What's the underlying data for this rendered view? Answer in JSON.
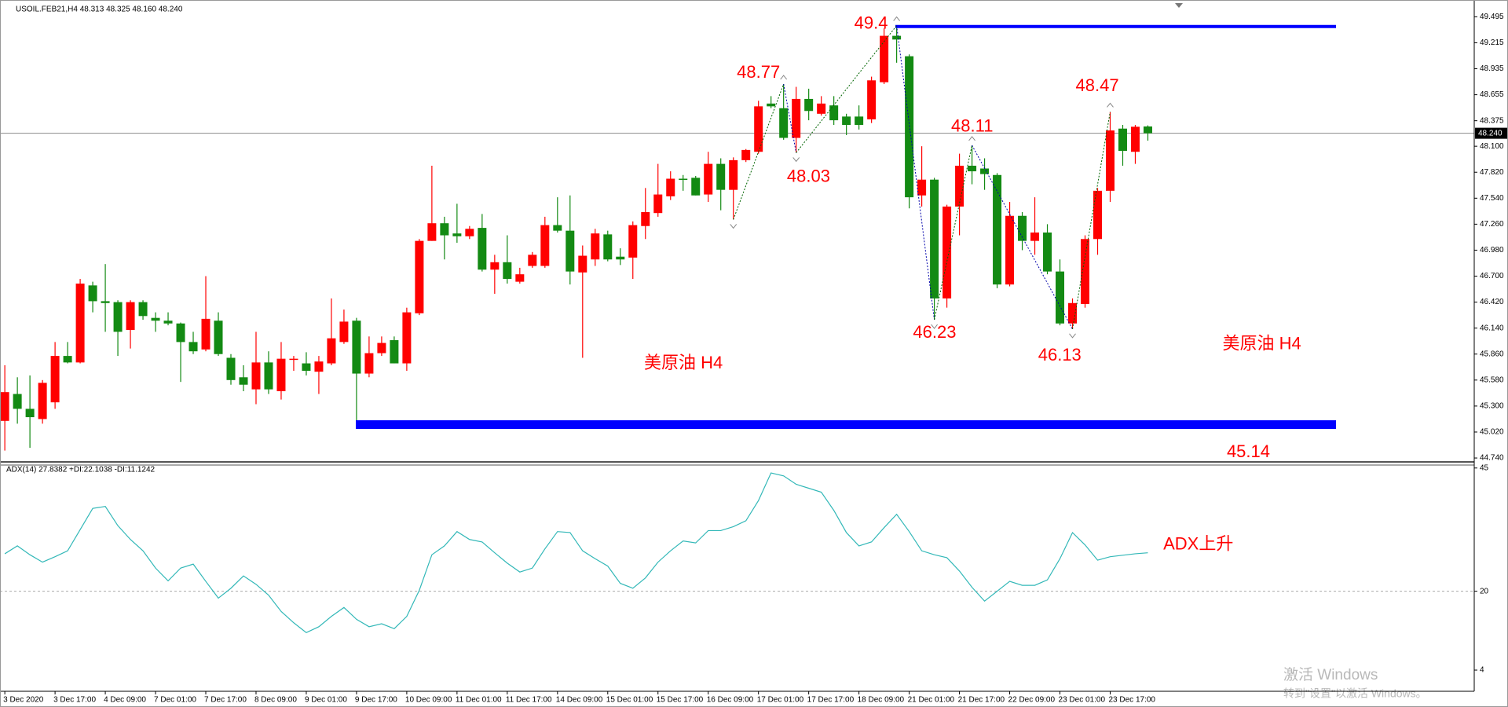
{
  "chart_data": [
    {
      "type": "candlestick",
      "title": "USOIL.FEB21,H4  48.313 48.325 48.160 48.240",
      "categories": [
        "3 Dec 2020",
        null,
        null,
        null,
        "3 Dec 17:00",
        null,
        null,
        null,
        "4 Dec 09:00",
        null,
        null,
        null,
        "7 Dec 01:00",
        null,
        null,
        null,
        "7 Dec 17:00",
        null,
        null,
        null,
        "8 Dec 09:00",
        null,
        null,
        null,
        "9 Dec 01:00",
        null,
        null,
        null,
        "9 Dec 17:00",
        null,
        null,
        null,
        "10 Dec 09:00",
        null,
        null,
        null,
        "11 Dec 01:00",
        null,
        null,
        null,
        "11 Dec 17:00",
        null,
        null,
        null,
        "14 Dec 09:00",
        null,
        null,
        null,
        "15 Dec 01:00",
        null,
        null,
        null,
        "15 Dec 17:00",
        null,
        null,
        null,
        "16 Dec 09:00",
        null,
        null,
        null,
        "17 Dec 01:00",
        null,
        null,
        null,
        "17 Dec 17:00",
        null,
        null,
        null,
        "18 Dec 09:00",
        null,
        null,
        null,
        "21 Dec 01:00",
        null,
        null,
        null,
        "21 Dec 17:00",
        null,
        null,
        null,
        "22 Dec 09:00",
        null,
        null,
        null,
        "23 Dec 01:00",
        null,
        null,
        null,
        "23 Dec 17:00",
        null,
        null,
        null
      ],
      "open": [
        45.14,
        45.43,
        45.27,
        45.16,
        45.34,
        45.84,
        45.77,
        46.6,
        46.43,
        46.42,
        46.12,
        46.42,
        46.25,
        46.22,
        46.19,
        45.99,
        45.91,
        46.22,
        45.82,
        45.61,
        45.48,
        45.77,
        45.46,
        45.8,
        45.76,
        45.67,
        45.76,
        45.99,
        46.22,
        45.65,
        45.87,
        46.01,
        45.76,
        46.3,
        47.08,
        47.27,
        47.16,
        47.13,
        47.22,
        46.77,
        46.85,
        46.64,
        46.81,
        46.81,
        47.25,
        47.19,
        46.74,
        46.88,
        47.15,
        46.91,
        46.9,
        47.24,
        47.38,
        47.56,
        47.75,
        47.76,
        47.58,
        47.91,
        47.63,
        47.95,
        48.04,
        48.56,
        48.51,
        48.19,
        48.61,
        48.45,
        48.54,
        48.42,
        48.42,
        48.39,
        48.79,
        49.29,
        49.07,
        47.57,
        47.74,
        46.46,
        47.45,
        47.89,
        47.86,
        47.79,
        46.61,
        47.35,
        47.08,
        47.17,
        46.75,
        46.19,
        46.4,
        47.1,
        47.62,
        48.29,
        48.04,
        48.313
      ],
      "high": [
        45.74,
        45.61,
        45.63,
        45.58,
        45.99,
        45.99,
        46.67,
        46.64,
        46.83,
        46.44,
        46.44,
        46.44,
        46.31,
        46.31,
        46.2,
        46.1,
        46.7,
        46.31,
        45.86,
        45.74,
        46.1,
        45.89,
        45.99,
        45.84,
        45.88,
        45.84,
        46.46,
        46.34,
        46.25,
        46.05,
        46.05,
        46.05,
        46.36,
        47.1,
        47.89,
        47.34,
        47.48,
        47.24,
        47.37,
        46.93,
        47.14,
        46.79,
        46.96,
        47.34,
        47.55,
        47.57,
        47.03,
        47.21,
        47.19,
        47.0,
        47.29,
        47.65,
        47.91,
        47.83,
        47.79,
        47.78,
        48.04,
        47.97,
        47.98,
        48.07,
        48.59,
        48.64,
        48.77,
        48.74,
        48.72,
        48.64,
        48.64,
        48.45,
        48.54,
        48.85,
        49.37,
        49.4,
        49.09,
        48.1,
        47.76,
        47.47,
        48.02,
        48.11,
        47.97,
        47.81,
        47.5,
        47.39,
        47.55,
        47.26,
        46.88,
        46.46,
        47.14,
        47.65,
        48.47,
        48.33,
        48.33,
        48.325
      ],
      "low": [
        44.82,
        45.11,
        44.85,
        45.11,
        45.27,
        45.76,
        45.76,
        46.31,
        46.1,
        45.84,
        45.92,
        46.23,
        46.1,
        46.17,
        45.56,
        45.86,
        45.89,
        45.84,
        45.53,
        45.46,
        45.32,
        45.43,
        45.37,
        45.68,
        45.63,
        45.43,
        45.74,
        45.97,
        45.11,
        45.61,
        45.84,
        45.76,
        45.68,
        46.28,
        47.08,
        46.88,
        47.06,
        47.1,
        46.75,
        46.51,
        46.62,
        46.62,
        46.79,
        46.79,
        47.17,
        46.61,
        45.82,
        46.81,
        46.86,
        46.82,
        46.67,
        47.1,
        47.34,
        47.52,
        47.62,
        47.57,
        47.5,
        47.41,
        47.31,
        47.93,
        48.02,
        48.51,
        48.17,
        48.03,
        48.38,
        48.43,
        48.33,
        48.22,
        48.28,
        48.35,
        48.77,
        49.0,
        47.43,
        47.45,
        46.23,
        46.36,
        47.14,
        47.69,
        47.63,
        46.57,
        46.59,
        46.98,
        46.93,
        46.72,
        46.17,
        46.13,
        46.36,
        46.93,
        47.5,
        47.89,
        47.91,
        48.16
      ],
      "close": [
        45.45,
        45.27,
        45.18,
        45.55,
        45.84,
        45.77,
        46.62,
        46.43,
        46.41,
        46.1,
        46.42,
        46.27,
        46.22,
        46.19,
        45.99,
        45.89,
        46.24,
        45.86,
        45.58,
        45.53,
        45.77,
        45.48,
        45.81,
        45.81,
        45.68,
        45.78,
        46.03,
        46.21,
        45.65,
        45.87,
        45.98,
        45.76,
        46.31,
        47.08,
        47.27,
        47.14,
        47.13,
        47.21,
        46.77,
        46.85,
        46.67,
        46.72,
        46.93,
        47.25,
        47.19,
        46.75,
        46.92,
        47.16,
        46.88,
        46.88,
        47.25,
        47.39,
        47.58,
        47.75,
        47.74,
        47.57,
        47.91,
        47.63,
        47.95,
        48.06,
        48.53,
        48.53,
        48.19,
        48.61,
        48.48,
        48.56,
        48.38,
        48.33,
        48.33,
        48.81,
        49.29,
        49.25,
        47.55,
        47.74,
        46.46,
        47.45,
        47.89,
        47.83,
        47.8,
        46.61,
        47.35,
        47.08,
        47.17,
        46.75,
        46.19,
        46.41,
        47.1,
        47.62,
        48.27,
        48.05,
        48.31,
        48.24
      ],
      "up_color": "#ff0000",
      "down_color": "#138a13",
      "ylim": [
        44.698,
        49.676
      ],
      "yticks": [
        49.495,
        49.215,
        48.935,
        48.655,
        48.375,
        {
          "value": 48.1,
          "label": "48.100"
        },
        {
          "value": 47.82,
          "label": "47.820"
        },
        {
          "value": 47.54,
          "label": "47.540"
        },
        {
          "value": 47.26,
          "label": "47.260"
        },
        {
          "value": 46.98,
          "label": "46.980"
        },
        {
          "value": 46.7,
          "label": "46.700"
        },
        {
          "value": 46.42,
          "label": "46.420"
        },
        {
          "value": 46.14,
          "label": "46.140"
        },
        {
          "value": 45.86,
          "label": "45.860"
        },
        {
          "value": 45.58,
          "label": "45.580"
        },
        {
          "value": 45.3,
          "label": "45.300"
        },
        {
          "value": 45.02,
          "label": "45.020"
        },
        {
          "value": 44.74,
          "label": "44.740"
        }
      ],
      "last_price": {
        "value": 48.24,
        "label": "48.240"
      },
      "hlines": [
        {
          "value": 49.39,
          "color": "#0000ff"
        },
        {
          "value": 45.1,
          "color": "#0000ff"
        }
      ],
      "zigzag": [
        47.31,
        48.77,
        48.03,
        49.4,
        46.23,
        48.11,
        46.13,
        48.47
      ],
      "annotations": [
        "美原油  H4",
        "美原油 H4",
        "45.14"
      ],
      "watermark": [
        "激活 Windows",
        "转到\"设置\"以激活 Windows。"
      ]
    },
    {
      "type": "line",
      "title": "ADX(14) 27.8382 +DI:22.1038 -DI:11.1242",
      "color": "#33b8b8",
      "values": [
        27.6,
        29.2,
        27.4,
        25.9,
        27.0,
        28.2,
        32.5,
        36.8,
        37.2,
        33.3,
        30.5,
        28.2,
        24.7,
        22.1,
        24.7,
        25.5,
        22.0,
        18.6,
        20.6,
        23.1,
        21.4,
        19.2,
        15.9,
        13.6,
        11.6,
        12.8,
        14.9,
        16.7,
        14.3,
        12.8,
        13.4,
        12.4,
        14.9,
        20.2,
        27.4,
        29.2,
        32.1,
        30.5,
        30.0,
        27.8,
        25.7,
        23.9,
        24.7,
        28.6,
        32.1,
        31.9,
        28.2,
        26.6,
        25.1,
        21.6,
        20.6,
        22.7,
        25.9,
        28.2,
        30.2,
        29.8,
        32.3,
        32.3,
        33.1,
        34.3,
        38.4,
        44.0,
        43.4,
        41.7,
        40.9,
        40.1,
        36.4,
        31.9,
        29.2,
        30.0,
        32.9,
        35.6,
        32.1,
        28.2,
        27.4,
        26.8,
        24.1,
        20.8,
        18.0,
        20.0,
        22.0,
        21.2,
        21.2,
        22.3,
        26.6,
        31.9,
        29.4,
        26.3,
        27.0,
        27.3,
        27.6,
        27.8
      ],
      "ylim": [
        -0.3,
        45.6
      ],
      "yticks": [
        45,
        20,
        4
      ],
      "level": 20,
      "annotations": [
        "ADX上升"
      ]
    }
  ]
}
